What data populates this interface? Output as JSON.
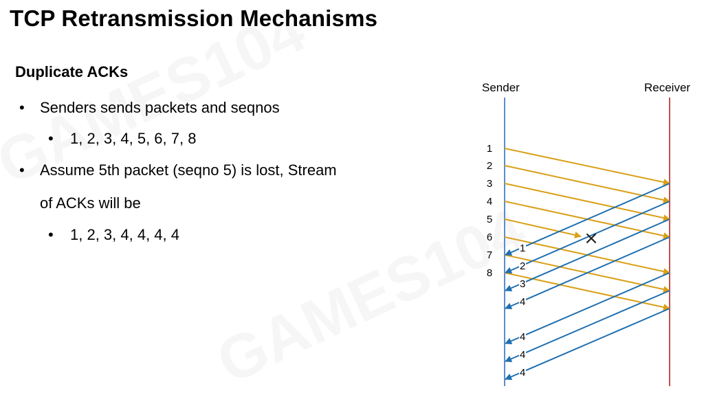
{
  "title": "TCP Retransmission Mechanisms",
  "subheading": "Duplicate ACKs",
  "bullets": [
    {
      "marker": "•",
      "text": "Senders sends packets and seqnos"
    },
    {
      "marker": "•",
      "text": "1, 2, 3, 4, 5, 6, 7, 8"
    },
    {
      "marker": "•",
      "text": "Assume 5th packet (seqno 5) is lost, Stream"
    },
    {
      "continuation": "of ACKs will be"
    },
    {
      "marker": "•",
      "text": "1, 2, 3, 4, 4, 4, 4"
    }
  ],
  "diagram": {
    "sender_label": "Sender",
    "receiver_label": "Receiver",
    "seqnos": [
      "1",
      "2",
      "3",
      "4",
      "5",
      "6",
      "7",
      "8"
    ],
    "acks": [
      "1",
      "2",
      "3",
      "4",
      "4",
      "4",
      "4"
    ],
    "lost_marker": "×",
    "colors": {
      "packet": "#D9A018",
      "ack": "#1F6FB0",
      "sender_line": "#5B8BD0",
      "receiver_line": "#C0504D"
    }
  },
  "watermark": {
    "text": "GAMES104"
  }
}
